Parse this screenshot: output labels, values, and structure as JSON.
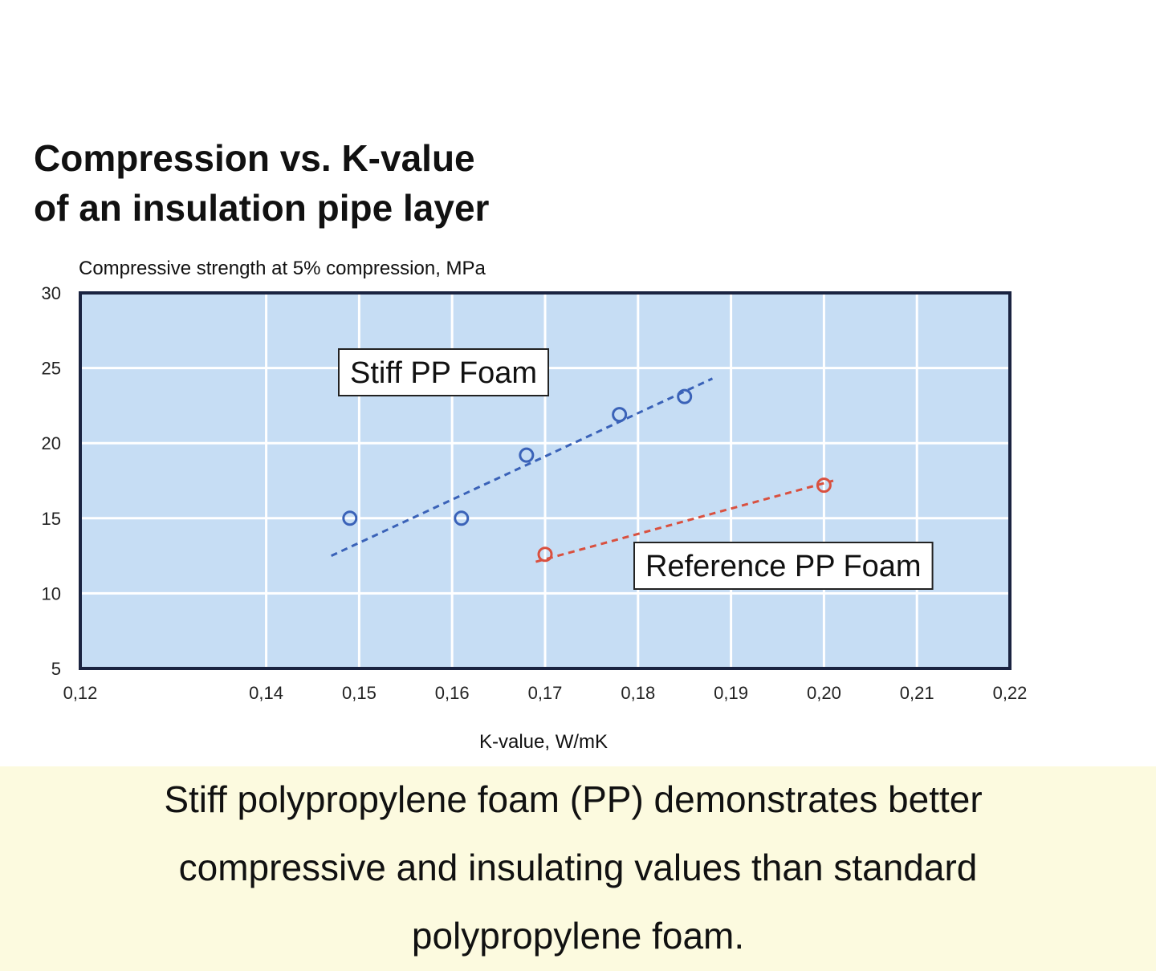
{
  "chart_data": {
    "type": "scatter",
    "title": [
      "Compression vs. K-value",
      "of an insulation pipe layer"
    ],
    "y_label": "Compressive strength at 5% compression, MPa",
    "x_label": "K-value, W/mK",
    "xlim": [
      0.12,
      0.22
    ],
    "xticks": [
      {
        "value": 0.12,
        "label": "0,12"
      },
      {
        "value": 0.14,
        "label": "0,14"
      },
      {
        "value": 0.15,
        "label": "0,15"
      },
      {
        "value": 0.16,
        "label": "0,16"
      },
      {
        "value": 0.17,
        "label": "0,17"
      },
      {
        "value": 0.18,
        "label": "0,18"
      },
      {
        "value": 0.19,
        "label": "0,19"
      },
      {
        "value": 0.2,
        "label": "0,20"
      },
      {
        "value": 0.21,
        "label": "0,21"
      },
      {
        "value": 0.22,
        "label": "0,22"
      }
    ],
    "ylim": [
      5,
      30
    ],
    "yticks": [
      5,
      10,
      15,
      20,
      25,
      30
    ],
    "grid": true,
    "series": [
      {
        "name": "Stiff PP Foam",
        "color": "#3a62b8",
        "x": [
          0.149,
          0.161,
          0.168,
          0.178,
          0.185
        ],
        "values": [
          15,
          15,
          19.2,
          21.9,
          23.1
        ],
        "trend": {
          "x": [
            0.147,
            0.188
          ],
          "values": [
            12.5,
            24.3
          ]
        }
      },
      {
        "name": "Reference PP Foam",
        "color": "#d9503f",
        "x": [
          0.17,
          0.2
        ],
        "values": [
          12.6,
          17.2
        ],
        "trend": {
          "x": [
            0.169,
            0.201
          ],
          "values": [
            12.1,
            17.5
          ]
        }
      }
    ]
  },
  "caption": [
    "Stiff polypropylene foam (PP) demonstrates better",
    "compressive and insulating values than standard",
    "polypropylene foam."
  ]
}
